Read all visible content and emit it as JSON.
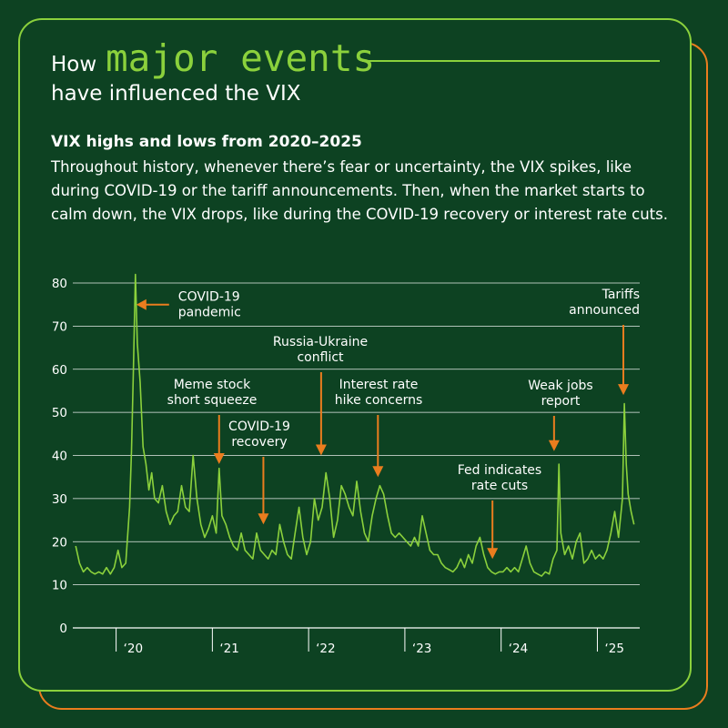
{
  "header": {
    "title_prefix": "How",
    "title_highlight": "major events",
    "title_line2": "have influenced the VIX",
    "subtitle": "VIX highs and lows from 2020–2025",
    "description": "Throughout history, whenever there’s fear or uncertainty, the VIX spikes, like during COVID-19 or the tariff announcements. Then, when the market starts to calm down, the VIX drops, like during the COVID-19 recovery or interest rate cuts."
  },
  "colors": {
    "background": "#0d4222",
    "accent_green": "#8bd13c",
    "accent_orange": "#ea7d1e",
    "line": "#8bd13c",
    "arrow": "#ea7d1e",
    "gridline": "#ffffff"
  },
  "chart_data": {
    "type": "line",
    "series": [
      {
        "values": [
          [
            2019.58,
            19
          ],
          [
            2019.62,
            15
          ],
          [
            2019.66,
            13
          ],
          [
            2019.7,
            14
          ],
          [
            2019.74,
            13
          ],
          [
            2019.78,
            12.5
          ],
          [
            2019.82,
            13
          ],
          [
            2019.86,
            12.5
          ],
          [
            2019.9,
            14
          ],
          [
            2019.94,
            12.5
          ],
          [
            2019.98,
            14
          ],
          [
            2020.02,
            18
          ],
          [
            2020.06,
            14
          ],
          [
            2020.1,
            15
          ],
          [
            2020.14,
            28
          ],
          [
            2020.16,
            41
          ],
          [
            2020.18,
            60
          ],
          [
            2020.2,
            82
          ],
          [
            2020.22,
            66
          ],
          [
            2020.25,
            57
          ],
          [
            2020.28,
            42
          ],
          [
            2020.31,
            38
          ],
          [
            2020.34,
            32
          ],
          [
            2020.37,
            36
          ],
          [
            2020.4,
            30
          ],
          [
            2020.44,
            29
          ],
          [
            2020.48,
            33
          ],
          [
            2020.52,
            27
          ],
          [
            2020.56,
            24
          ],
          [
            2020.6,
            26
          ],
          [
            2020.64,
            27
          ],
          [
            2020.68,
            33
          ],
          [
            2020.72,
            28
          ],
          [
            2020.76,
            27
          ],
          [
            2020.8,
            40
          ],
          [
            2020.84,
            30
          ],
          [
            2020.88,
            24
          ],
          [
            2020.92,
            21
          ],
          [
            2020.96,
            23
          ],
          [
            2021.0,
            26
          ],
          [
            2021.04,
            22
          ],
          [
            2021.07,
            37
          ],
          [
            2021.1,
            26
          ],
          [
            2021.14,
            24
          ],
          [
            2021.18,
            21
          ],
          [
            2021.22,
            19
          ],
          [
            2021.26,
            18
          ],
          [
            2021.3,
            22
          ],
          [
            2021.34,
            18
          ],
          [
            2021.38,
            17
          ],
          [
            2021.42,
            16
          ],
          [
            2021.46,
            22
          ],
          [
            2021.5,
            18
          ],
          [
            2021.54,
            17
          ],
          [
            2021.58,
            16
          ],
          [
            2021.62,
            18
          ],
          [
            2021.66,
            17
          ],
          [
            2021.7,
            24
          ],
          [
            2021.74,
            20
          ],
          [
            2021.78,
            17
          ],
          [
            2021.82,
            16
          ],
          [
            2021.86,
            22
          ],
          [
            2021.9,
            28
          ],
          [
            2021.94,
            21
          ],
          [
            2021.98,
            17
          ],
          [
            2022.02,
            20
          ],
          [
            2022.06,
            30
          ],
          [
            2022.1,
            25
          ],
          [
            2022.14,
            28
          ],
          [
            2022.18,
            36
          ],
          [
            2022.22,
            30
          ],
          [
            2022.26,
            21
          ],
          [
            2022.3,
            25
          ],
          [
            2022.34,
            33
          ],
          [
            2022.38,
            31
          ],
          [
            2022.42,
            28
          ],
          [
            2022.46,
            26
          ],
          [
            2022.5,
            34
          ],
          [
            2022.54,
            27
          ],
          [
            2022.58,
            22
          ],
          [
            2022.62,
            20
          ],
          [
            2022.66,
            26
          ],
          [
            2022.7,
            30
          ],
          [
            2022.74,
            33
          ],
          [
            2022.78,
            31
          ],
          [
            2022.82,
            26
          ],
          [
            2022.86,
            22
          ],
          [
            2022.9,
            21
          ],
          [
            2022.94,
            22
          ],
          [
            2022.98,
            21
          ],
          [
            2023.02,
            20
          ],
          [
            2023.06,
            19
          ],
          [
            2023.1,
            21
          ],
          [
            2023.14,
            19
          ],
          [
            2023.18,
            26
          ],
          [
            2023.22,
            22
          ],
          [
            2023.26,
            18
          ],
          [
            2023.3,
            17
          ],
          [
            2023.34,
            17
          ],
          [
            2023.38,
            15
          ],
          [
            2023.42,
            14
          ],
          [
            2023.46,
            13.5
          ],
          [
            2023.5,
            13
          ],
          [
            2023.54,
            14
          ],
          [
            2023.58,
            16
          ],
          [
            2023.62,
            14
          ],
          [
            2023.66,
            17
          ],
          [
            2023.7,
            15
          ],
          [
            2023.74,
            19
          ],
          [
            2023.78,
            21
          ],
          [
            2023.82,
            17
          ],
          [
            2023.86,
            14
          ],
          [
            2023.9,
            13
          ],
          [
            2023.94,
            12.5
          ],
          [
            2023.98,
            13
          ],
          [
            2024.02,
            13
          ],
          [
            2024.06,
            14
          ],
          [
            2024.1,
            13
          ],
          [
            2024.14,
            14
          ],
          [
            2024.18,
            13
          ],
          [
            2024.22,
            16
          ],
          [
            2024.26,
            19
          ],
          [
            2024.3,
            15
          ],
          [
            2024.34,
            13
          ],
          [
            2024.38,
            12.5
          ],
          [
            2024.42,
            12
          ],
          [
            2024.46,
            13
          ],
          [
            2024.5,
            12.5
          ],
          [
            2024.54,
            16
          ],
          [
            2024.58,
            18
          ],
          [
            2024.6,
            38
          ],
          [
            2024.62,
            22
          ],
          [
            2024.66,
            17
          ],
          [
            2024.7,
            19
          ],
          [
            2024.74,
            16
          ],
          [
            2024.78,
            20
          ],
          [
            2024.82,
            22
          ],
          [
            2024.86,
            15
          ],
          [
            2024.9,
            16
          ],
          [
            2024.94,
            18
          ],
          [
            2024.98,
            16
          ],
          [
            2025.02,
            17
          ],
          [
            2025.06,
            16
          ],
          [
            2025.1,
            18
          ],
          [
            2025.14,
            22
          ],
          [
            2025.18,
            27
          ],
          [
            2025.22,
            21
          ],
          [
            2025.26,
            30
          ],
          [
            2025.28,
            52
          ],
          [
            2025.3,
            38
          ],
          [
            2025.32,
            31
          ],
          [
            2025.35,
            27
          ],
          [
            2025.38,
            24
          ]
        ]
      }
    ],
    "x_ticks": [
      {
        "value": 2020,
        "label": "‘20"
      },
      {
        "value": 2021,
        "label": "‘21"
      },
      {
        "value": 2022,
        "label": "‘22"
      },
      {
        "value": 2023,
        "label": "‘23"
      },
      {
        "value": 2024,
        "label": "‘24"
      },
      {
        "value": 2025,
        "label": "‘25"
      }
    ],
    "y_ticks": [
      0,
      10,
      20,
      30,
      40,
      50,
      60,
      70,
      80
    ],
    "xlim": [
      2019.55,
      2025.44
    ],
    "ylim": [
      0,
      80
    ],
    "grid": true,
    "annotations": [
      {
        "lines": [
          "COVID-19",
          "pandemic"
        ],
        "x": 2020.21,
        "y": 75,
        "arrow": "left"
      },
      {
        "lines": [
          "Meme stock",
          "short squeeze"
        ],
        "x": 2021.07,
        "y": 38,
        "arrow": "down"
      },
      {
        "lines": [
          "COVID-19",
          "recovery"
        ],
        "x": 2021.53,
        "y": 24,
        "arrow": "down"
      },
      {
        "lines": [
          "Russia-Ukraine",
          "conflict"
        ],
        "x": 2022.13,
        "y": 40,
        "arrow": "down"
      },
      {
        "lines": [
          "Interest rate",
          "hike concerns"
        ],
        "x": 2022.72,
        "y": 35,
        "arrow": "down"
      },
      {
        "lines": [
          "Fed indicates",
          "rate cuts"
        ],
        "x": 2023.91,
        "y": 16,
        "arrow": "down"
      },
      {
        "lines": [
          "Weak jobs",
          "report"
        ],
        "x": 2024.55,
        "y": 41,
        "arrow": "down"
      },
      {
        "lines": [
          "Tariffs",
          "announced"
        ],
        "x": 2025.27,
        "y": 54,
        "arrow": "down"
      }
    ]
  }
}
